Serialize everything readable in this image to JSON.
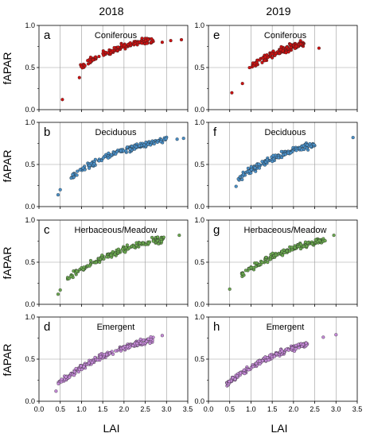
{
  "columns": [
    "2018",
    "2019"
  ],
  "ylabel": "fAPAR",
  "xlabel": "LAI",
  "x_ticks": [
    "0.0",
    "0.5",
    "1.0",
    "1.5",
    "2.0",
    "2.5",
    "3.0",
    "3.5"
  ],
  "y_ticks": [
    "0.0",
    "0.5",
    "1.0"
  ],
  "chart_data": [
    {
      "type": "scatter",
      "letter": "a",
      "panel_title": "Coniferous",
      "year": "2018",
      "xlim": [
        0,
        3.5
      ],
      "ylim": [
        0,
        1
      ],
      "color": "#cc1111",
      "x_range": [
        0.95,
        2.7
      ],
      "k": 0.8,
      "fmax": 0.94,
      "jitter": 0.02,
      "n": 130,
      "extra": [
        [
          0.55,
          0.12
        ],
        [
          0.95,
          0.38
        ],
        [
          2.9,
          0.8
        ],
        [
          3.1,
          0.82
        ],
        [
          3.35,
          0.83
        ]
      ]
    },
    {
      "type": "scatter",
      "letter": "e",
      "panel_title": "Coniferous",
      "year": "2019",
      "xlim": [
        0,
        3.5
      ],
      "ylim": [
        0,
        1
      ],
      "color": "#cc1111",
      "x_range": [
        0.95,
        2.25
      ],
      "k": 0.8,
      "fmax": 0.94,
      "jitter": 0.025,
      "n": 130,
      "extra": [
        [
          0.55,
          0.2
        ],
        [
          0.8,
          0.31
        ],
        [
          2.6,
          0.73
        ]
      ]
    },
    {
      "type": "scatter",
      "letter": "b",
      "panel_title": "Deciduous",
      "year": "2018",
      "xlim": [
        0,
        3.5
      ],
      "ylim": [
        0,
        1
      ],
      "color": "#4a90c8",
      "x_range": [
        0.7,
        3.0
      ],
      "k": 0.62,
      "fmax": 0.94,
      "jitter": 0.02,
      "n": 160,
      "extra": [
        [
          0.45,
          0.14
        ],
        [
          0.5,
          0.2
        ],
        [
          3.25,
          0.8
        ],
        [
          3.4,
          0.81
        ]
      ]
    },
    {
      "type": "scatter",
      "letter": "f",
      "panel_title": "Deciduous",
      "year": "2019",
      "xlim": [
        0,
        3.5
      ],
      "ylim": [
        0,
        1
      ],
      "color": "#4a90c8",
      "x_range": [
        0.7,
        2.5
      ],
      "k": 0.62,
      "fmax": 0.94,
      "jitter": 0.022,
      "n": 160,
      "extra": [
        [
          0.65,
          0.24
        ],
        [
          3.4,
          0.82
        ]
      ]
    },
    {
      "type": "scatter",
      "letter": "c",
      "panel_title": "Herbaceous/Meadow",
      "year": "2018",
      "xlim": [
        0,
        3.5
      ],
      "ylim": [
        0,
        1
      ],
      "color": "#6aa84f",
      "x_range": [
        0.65,
        2.95
      ],
      "k": 0.58,
      "fmax": 0.95,
      "jitter": 0.022,
      "n": 150,
      "extra": [
        [
          0.45,
          0.12
        ],
        [
          0.5,
          0.17
        ],
        [
          3.3,
          0.82
        ]
      ]
    },
    {
      "type": "scatter",
      "letter": "g",
      "panel_title": "Herbaceous/Meadow",
      "year": "2019",
      "xlim": [
        0,
        3.5
      ],
      "ylim": [
        0,
        1
      ],
      "color": "#6aa84f",
      "x_range": [
        0.75,
        2.75
      ],
      "k": 0.6,
      "fmax": 0.95,
      "jitter": 0.022,
      "n": 150,
      "extra": [
        [
          0.5,
          0.18
        ],
        [
          2.95,
          0.82
        ]
      ]
    },
    {
      "type": "scatter",
      "letter": "d",
      "panel_title": "Emergent",
      "year": "2018",
      "xlim": [
        0,
        3.5
      ],
      "ylim": [
        0,
        1
      ],
      "color": "#c58ad8",
      "x_range": [
        0.45,
        2.7
      ],
      "k": 0.55,
      "fmax": 0.95,
      "jitter": 0.02,
      "n": 190,
      "extra": [
        [
          0.4,
          0.12
        ],
        [
          2.9,
          0.78
        ]
      ]
    },
    {
      "type": "scatter",
      "letter": "h",
      "panel_title": "Emergent",
      "year": "2019",
      "xlim": [
        0,
        3.5
      ],
      "ylim": [
        0,
        1
      ],
      "color": "#c58ad8",
      "x_range": [
        0.4,
        2.35
      ],
      "k": 0.55,
      "fmax": 0.95,
      "jitter": 0.02,
      "n": 190,
      "extra": [
        [
          2.7,
          0.76
        ],
        [
          3.0,
          0.79
        ]
      ]
    }
  ]
}
